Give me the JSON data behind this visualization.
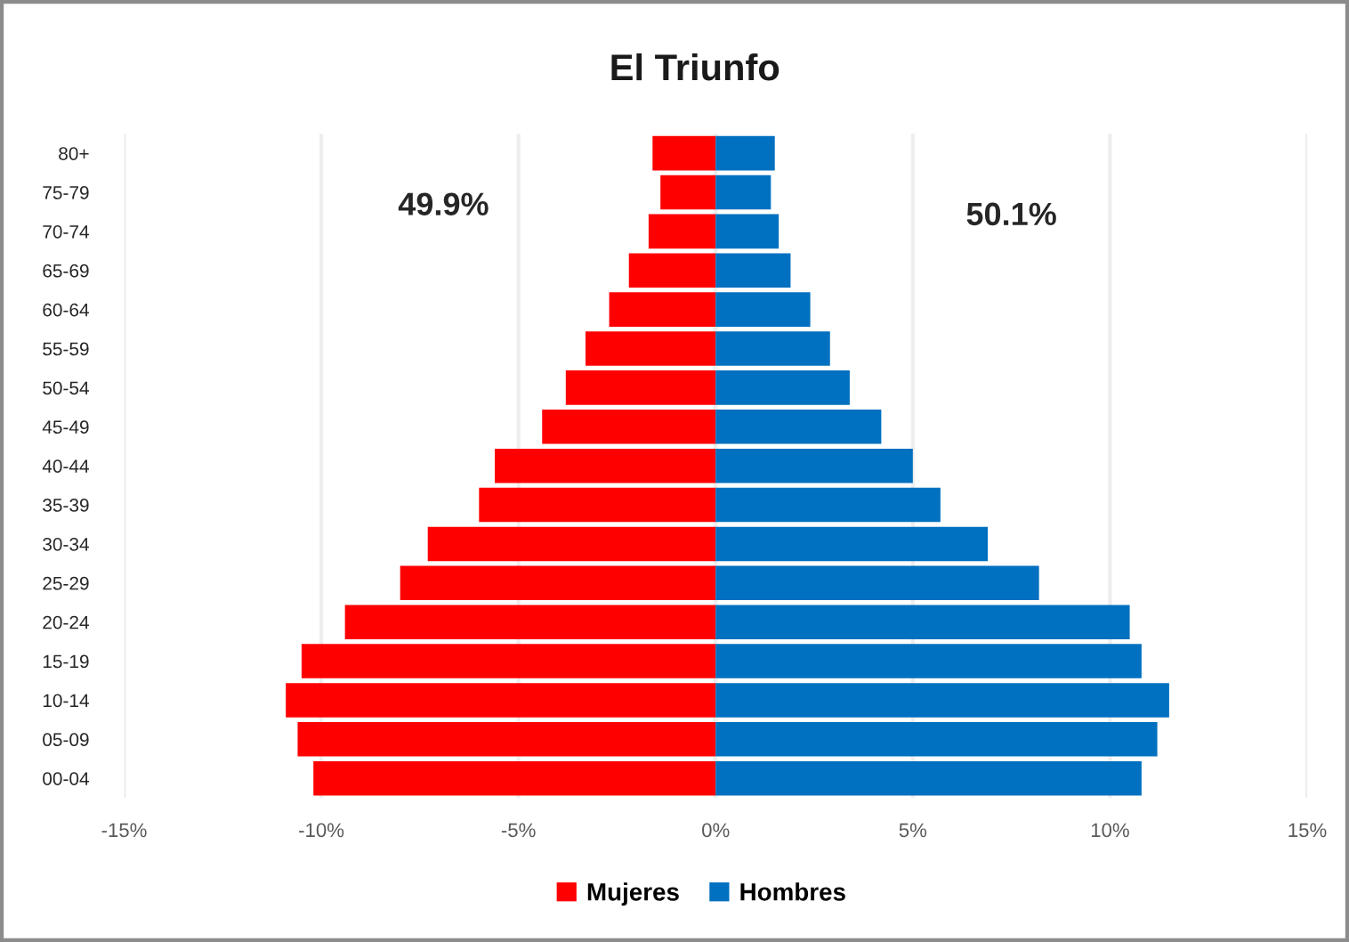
{
  "chart_data": {
    "type": "bar",
    "orientation": "horizontal",
    "stacked": true,
    "title": "El Triunfo",
    "categories": [
      "80+",
      "75-79",
      "70-74",
      "65-69",
      "60-64",
      "55-59",
      "50-54",
      "45-49",
      "40-44",
      "35-39",
      "30-34",
      "25-29",
      "20-24",
      "15-19",
      "10-14",
      "05-09",
      "00-04"
    ],
    "series": [
      {
        "name": "Mujeres",
        "color": "#ff0000",
        "values": [
          -1.6,
          -1.4,
          -1.7,
          -2.2,
          -2.7,
          -3.3,
          -3.8,
          -4.4,
          -5.6,
          -6.0,
          -7.3,
          -8.0,
          -9.4,
          -10.5,
          -10.9,
          -10.6,
          -10.2
        ]
      },
      {
        "name": "Hombres",
        "color": "#0070c0",
        "values": [
          1.5,
          1.4,
          1.6,
          1.9,
          2.4,
          2.9,
          3.4,
          4.2,
          5.0,
          5.7,
          6.9,
          8.2,
          10.5,
          10.8,
          11.5,
          11.2,
          10.8
        ]
      }
    ],
    "xlim": [
      -15,
      15
    ],
    "xticks": [
      {
        "value": -15,
        "label": "-15%"
      },
      {
        "value": -10,
        "label": "-10%"
      },
      {
        "value": -5,
        "label": "-5%"
      },
      {
        "value": 0,
        "label": "0%"
      },
      {
        "value": 5,
        "label": "5%"
      },
      {
        "value": 10,
        "label": "10%"
      },
      {
        "value": 15,
        "label": "15%"
      }
    ],
    "grid": "x",
    "legend": "bottom",
    "annotations": [
      "49.9%",
      "50.1%"
    ]
  }
}
